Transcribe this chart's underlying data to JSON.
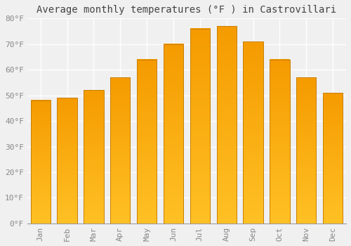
{
  "title": "Average monthly temperatures (°F ) in Castrovillari",
  "months": [
    "Jan",
    "Feb",
    "Mar",
    "Apr",
    "May",
    "Jun",
    "Jul",
    "Aug",
    "Sep",
    "Oct",
    "Nov",
    "Dec"
  ],
  "values": [
    48,
    49,
    52,
    57,
    64,
    70,
    76,
    77,
    71,
    64,
    57,
    51
  ],
  "bar_color_top": "#FFC125",
  "bar_color_bottom": "#F59B00",
  "bar_edge_color": "#C88000",
  "ylim": [
    0,
    80
  ],
  "yticks": [
    0,
    10,
    20,
    30,
    40,
    50,
    60,
    70,
    80
  ],
  "ytick_labels": [
    "0°F",
    "10°F",
    "20°F",
    "30°F",
    "40°F",
    "50°F",
    "60°F",
    "70°F",
    "80°F"
  ],
  "background_color": "#F0F0F0",
  "grid_color": "#FFFFFF",
  "title_fontsize": 10,
  "tick_fontsize": 8,
  "font_family": "monospace",
  "tick_color": "#888888"
}
